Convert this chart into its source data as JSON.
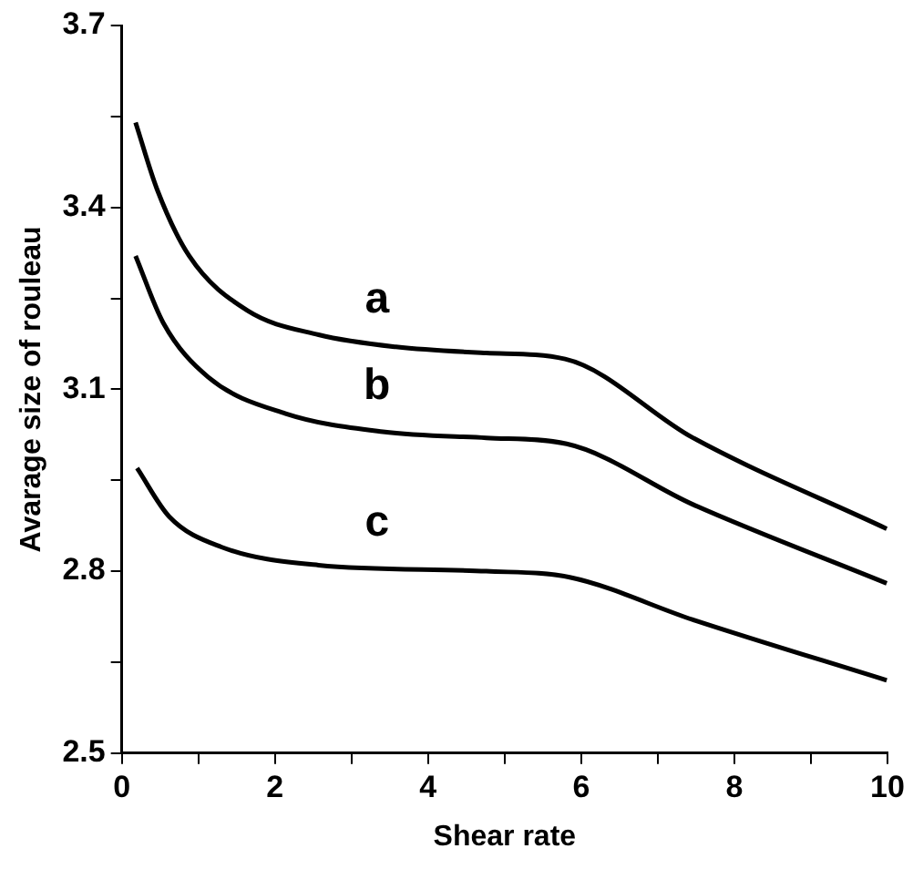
{
  "chart_data": {
    "type": "line",
    "xlabel": "Shear rate",
    "ylabel": "Avarage size of rouleau",
    "xlim": [
      0,
      10
    ],
    "ylim": [
      2.5,
      3.7
    ],
    "xticks": [
      0,
      {
        "value": 1,
        "label": null
      },
      2,
      {
        "value": 3,
        "label": null
      },
      4,
      {
        "value": 5,
        "label": null
      },
      6,
      {
        "value": 7,
        "label": null
      },
      8,
      {
        "value": 9,
        "label": null
      },
      10
    ],
    "yticks": [
      2.5,
      {
        "value": 2.65,
        "label": null
      },
      2.8,
      {
        "value": 2.95,
        "label": null
      },
      3.1,
      {
        "value": 3.25,
        "label": null
      },
      3.4,
      {
        "value": 3.55,
        "label": null
      },
      3.7
    ],
    "grid": false,
    "marker": "none",
    "line_style": "solid",
    "series": [
      {
        "name": "a",
        "color": "#000000",
        "x": [
          0.18,
          0.46,
          0.88,
          1.64,
          2.57,
          3.58,
          4.76,
          5.79,
          7.46,
          9.99
        ],
        "values": [
          3.54,
          3.43,
          3.32,
          3.23,
          3.19,
          3.17,
          3.16,
          3.15,
          3.02,
          2.87
        ]
      },
      {
        "name": "b",
        "color": "#000000",
        "x": [
          0.18,
          0.54,
          1.13,
          2.14,
          3.41,
          4.76,
          5.81,
          7.46,
          9.99
        ],
        "values": [
          3.32,
          3.21,
          3.12,
          3.06,
          3.03,
          3.02,
          3.01,
          2.91,
          2.78
        ]
      },
      {
        "name": "c",
        "color": "#000000",
        "x": [
          0.2,
          0.62,
          1.3,
          2.57,
          4.76,
          5.85,
          7.46,
          9.99
        ],
        "values": [
          2.97,
          2.89,
          2.84,
          2.81,
          2.8,
          2.79,
          2.72,
          2.62
        ]
      }
    ]
  }
}
